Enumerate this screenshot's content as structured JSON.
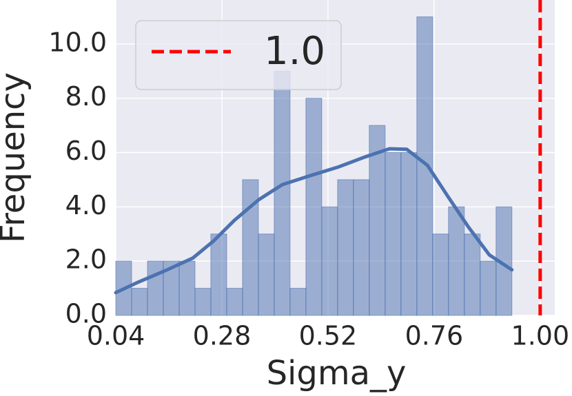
{
  "chart_data": {
    "type": "histogram",
    "xlabel": "Sigma_y",
    "ylabel": "Frequency",
    "bins": [
      0.04,
      0.0758,
      0.1117,
      0.1475,
      0.1834,
      0.2192,
      0.255,
      0.2909,
      0.3267,
      0.3626,
      0.3984,
      0.4342,
      0.4701,
      0.5059,
      0.5418,
      0.5776,
      0.6134,
      0.6493,
      0.6851,
      0.721,
      0.7568,
      0.7926,
      0.8285,
      0.8643,
      0.9002,
      0.936
    ],
    "counts": [
      2,
      1,
      2,
      2,
      2,
      1,
      3,
      1,
      5,
      3,
      9,
      1,
      8,
      4,
      5,
      5,
      7,
      6,
      6,
      11,
      3,
      4,
      3,
      2,
      4
    ],
    "color": "#4c72b0",
    "kde": {
      "x": [
        0.04,
        0.09,
        0.152,
        0.214,
        0.261,
        0.308,
        0.363,
        0.417,
        0.48,
        0.542,
        0.604,
        0.659,
        0.698,
        0.745,
        0.791,
        0.838,
        0.885,
        0.936
      ],
      "y": [
        0.84,
        1.22,
        1.65,
        2.11,
        2.74,
        3.5,
        4.26,
        4.82,
        5.15,
        5.46,
        5.84,
        6.14,
        6.12,
        5.53,
        4.39,
        3.25,
        2.23,
        1.68
      ]
    },
    "vline": {
      "x": 1.0,
      "label": "1.0",
      "color": "#ff0000"
    },
    "xlim": [
      0.04,
      1.033
    ],
    "ylim": [
      0,
      11.62
    ],
    "xticks": [
      0.04,
      0.28,
      0.52,
      0.76,
      {
        "value": 1.0,
        "label": "1.00"
      }
    ],
    "yticks": [
      {
        "value": 0,
        "label": "0.0"
      },
      {
        "value": 2,
        "label": "2.0"
      },
      {
        "value": 4,
        "label": "4.0"
      },
      {
        "value": 6,
        "label": "6.0"
      },
      {
        "value": 8,
        "label": "8.0"
      },
      {
        "value": 10,
        "label": "10.0"
      }
    ],
    "grid": true,
    "legend": "upper left"
  }
}
